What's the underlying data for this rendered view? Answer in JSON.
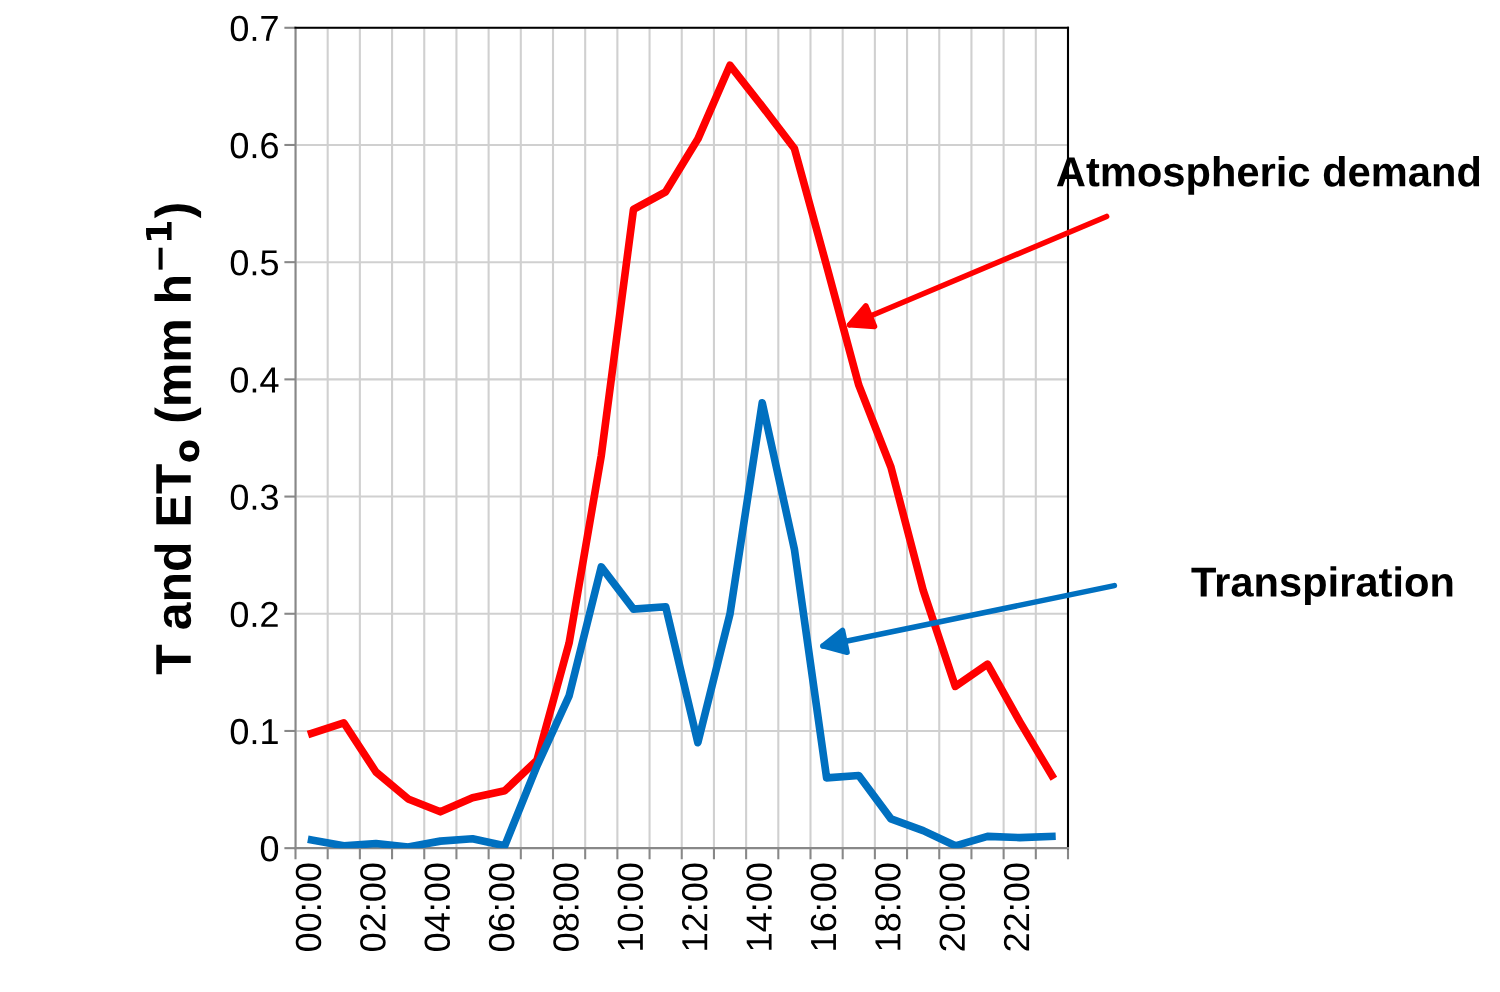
{
  "chart_data": {
    "type": "line",
    "ylabel": "T and ET$_{o}$ (mm h$^{−1}$)",
    "categories": [
      "00:00",
      null,
      "02:00",
      null,
      "04:00",
      null,
      "06:00",
      null,
      "08:00",
      null,
      "10:00",
      null,
      "12:00",
      null,
      "14:00",
      null,
      "16:00",
      null,
      "18:00",
      null,
      "20:00",
      null,
      "22:00",
      null
    ],
    "series": [
      {
        "name": "Atmospheric demand",
        "color": "#ff0000",
        "values": [
          0.098,
          0.107,
          0.065,
          0.042,
          0.031,
          0.043,
          0.049,
          0.075,
          0.175,
          0.335,
          0.545,
          0.56,
          0.605,
          0.668,
          0.633,
          0.597,
          0.497,
          0.395,
          0.325,
          0.22,
          0.138,
          0.157,
          0.108,
          0.062
        ]
      },
      {
        "name": "Transpiration",
        "color": "#0070c0",
        "values": [
          0.007,
          0.002,
          0.004,
          0.001,
          0.006,
          0.008,
          0.002,
          0.07,
          0.13,
          0.24,
          0.204,
          0.206,
          0.09,
          0.2,
          0.38,
          0.255,
          0.06,
          0.062,
          0.025,
          0.015,
          0.002,
          0.01,
          0.009,
          0.01
        ]
      }
    ],
    "ylim": [
      0,
      0.7
    ],
    "yticks": [
      0,
      0.1,
      0.2,
      0.3,
      0.4,
      0.5,
      0.6,
      0.7
    ],
    "grid": true,
    "legend": false,
    "marker": "none",
    "line_style": "solid"
  }
}
